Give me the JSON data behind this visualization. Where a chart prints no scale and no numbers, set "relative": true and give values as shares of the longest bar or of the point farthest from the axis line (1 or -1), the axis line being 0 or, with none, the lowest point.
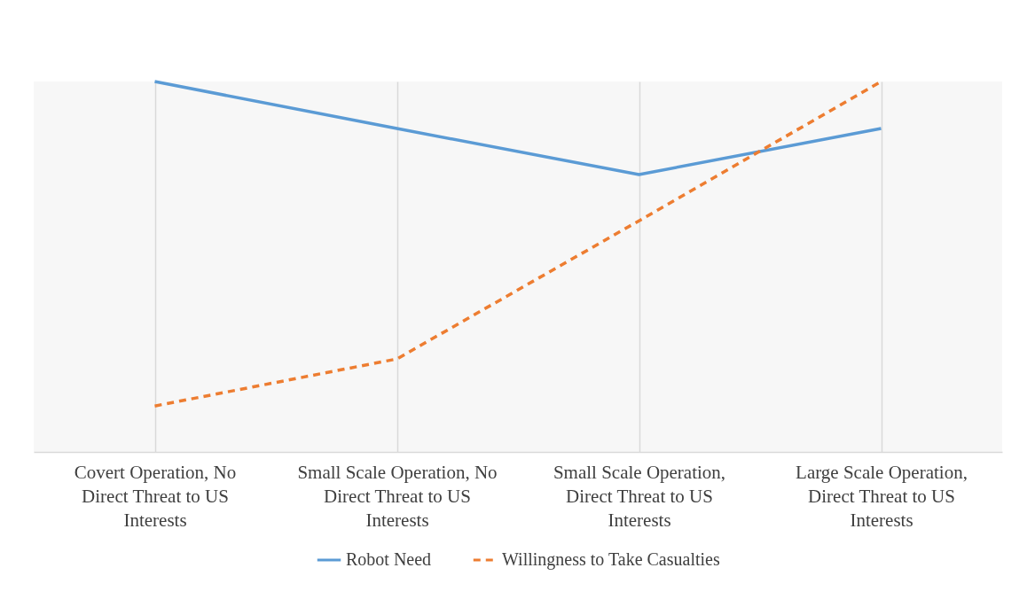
{
  "chart_data": {
    "type": "line",
    "relative": true,
    "categories": [
      "Covert Operation, No Direct Threat to US Interests",
      "Small Scale Operation, No Direct Threat to US Interests",
      "Small Scale Operation, Direct Threat to US Interests",
      "Large Scale Operation, Direct Threat to US Interests"
    ],
    "series": [
      {
        "name": "Robot Need",
        "color": "#5b9bd5",
        "line_style": "solid",
        "values": [
          1,
          0.873,
          0.749,
          0.873
        ]
      },
      {
        "name": "Willingness to Take Casualties",
        "color": "#ed7d31",
        "line_style": "dashed",
        "values": [
          0.124,
          0.251,
          0.624,
          1
        ]
      }
    ],
    "grid": "x",
    "legend": "bottom",
    "marker": "none"
  }
}
